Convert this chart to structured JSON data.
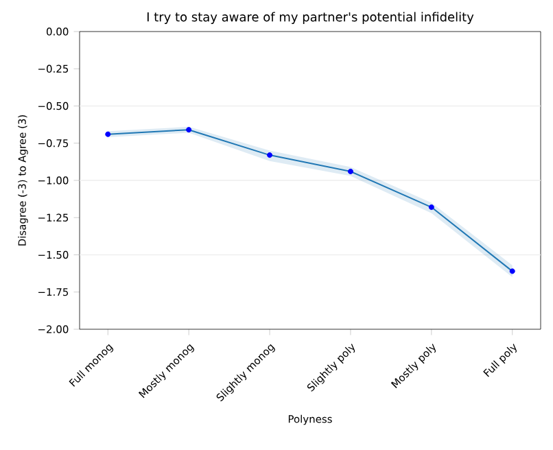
{
  "chart_data": {
    "type": "line",
    "title": "I try to stay aware of my partner's potential infidelity",
    "xlabel": "Polyness",
    "ylabel": "Disagree (-3) to Agree (3)",
    "categories": [
      "Full monog",
      "Mostly monog",
      "Slightly monog",
      "Slightly poly",
      "Mostly poly",
      "Full poly"
    ],
    "series": [
      {
        "color": "#1f77b4",
        "colors": [
          "#0000ff",
          "#0000ff",
          "#0000ff",
          "#0000ff",
          "#0000ff",
          "#0000ff"
        ],
        "values": [
          -0.69,
          -0.66,
          -0.83,
          -0.94,
          -1.18,
          -1.61
        ],
        "lower": [
          -0.71,
          -0.68,
          -0.87,
          -0.97,
          -1.22,
          -1.65
        ],
        "upper": [
          -0.67,
          -0.64,
          -0.8,
          -0.91,
          -1.15,
          -1.57
        ]
      }
    ],
    "marker": "circle",
    "ylim": [
      -2.0,
      0.0
    ],
    "yticks": [
      {
        "value": -2.0,
        "label": "−2.00"
      },
      {
        "value": -1.75,
        "label": "−1.75"
      },
      {
        "value": -1.5,
        "label": "−1.50"
      },
      {
        "value": -1.25,
        "label": "−1.25"
      },
      {
        "value": -1.0,
        "label": "−1.00"
      },
      {
        "value": -0.75,
        "label": "−0.75"
      },
      {
        "value": -0.5,
        "label": "−0.50"
      },
      {
        "value": -0.25,
        "label": "−0.25"
      },
      {
        "value": 0.0,
        "label": "0.00"
      }
    ],
    "ref_lines": [
      {
        "axis": "y",
        "value": -0.5,
        "color": "#eeeeee"
      },
      {
        "axis": "y",
        "value": -1.0,
        "color": "#eeeeee"
      },
      {
        "axis": "y",
        "value": -1.5,
        "color": "#eeeeee"
      }
    ]
  }
}
